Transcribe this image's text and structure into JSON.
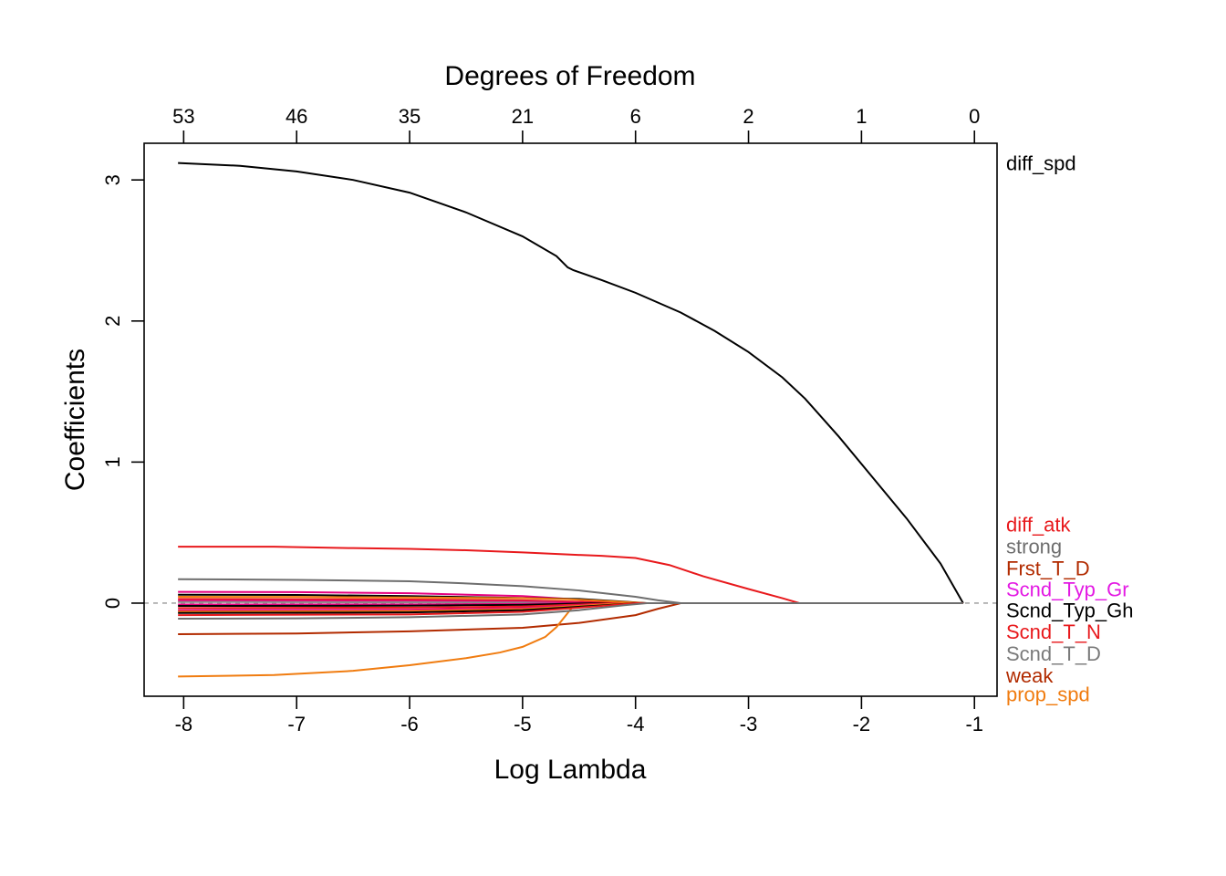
{
  "chart_data": {
    "type": "line",
    "title": "",
    "xlabel": "Log Lambda",
    "ylabel": "Coefficients",
    "top_axis_label": "Degrees of Freedom",
    "xlim": [
      -8.35,
      -0.8
    ],
    "ylim": [
      -0.66,
      3.26
    ],
    "x_ticks": [
      -8,
      -7,
      -6,
      -5,
      -4,
      -3,
      -2,
      -1
    ],
    "y_ticks": [
      0,
      1,
      2,
      3
    ],
    "top_ticks": [
      {
        "x": -8,
        "label": "53"
      },
      {
        "x": -7,
        "label": "46"
      },
      {
        "x": -6,
        "label": "35"
      },
      {
        "x": -5,
        "label": "21"
      },
      {
        "x": -4,
        "label": "6"
      },
      {
        "x": -3,
        "label": "2"
      },
      {
        "x": -2,
        "label": "1"
      },
      {
        "x": -1,
        "label": "0"
      }
    ],
    "zero_line": {
      "y": 0,
      "color": "#a8a8a8",
      "style": "dashed"
    },
    "grid": false,
    "series": [
      {
        "name": "diff_spd",
        "color": "#000000",
        "points": [
          [
            -8.05,
            3.12
          ],
          [
            -7.5,
            3.1
          ],
          [
            -7,
            3.06
          ],
          [
            -6.5,
            3.0
          ],
          [
            -6,
            2.91
          ],
          [
            -5.5,
            2.77
          ],
          [
            -5,
            2.6
          ],
          [
            -4.7,
            2.46
          ],
          [
            -4.6,
            2.38
          ],
          [
            -4.55,
            2.36
          ],
          [
            -4.3,
            2.29
          ],
          [
            -4,
            2.2
          ],
          [
            -3.6,
            2.06
          ],
          [
            -3.3,
            1.93
          ],
          [
            -3,
            1.78
          ],
          [
            -2.7,
            1.6
          ],
          [
            -2.5,
            1.45
          ],
          [
            -2.2,
            1.18
          ],
          [
            -1.9,
            0.89
          ],
          [
            -1.6,
            0.6
          ],
          [
            -1.3,
            0.28
          ],
          [
            -1.1,
            0.0
          ]
        ]
      },
      {
        "name": "diff_atk",
        "color": "#e8191c",
        "points": [
          [
            -8.05,
            0.4
          ],
          [
            -7.2,
            0.4
          ],
          [
            -6.5,
            0.39
          ],
          [
            -6,
            0.385
          ],
          [
            -5.5,
            0.375
          ],
          [
            -5,
            0.36
          ],
          [
            -4.6,
            0.345
          ],
          [
            -4.3,
            0.335
          ],
          [
            -4,
            0.32
          ],
          [
            -3.7,
            0.27
          ],
          [
            -3.4,
            0.19
          ],
          [
            -3,
            0.1
          ],
          [
            -2.7,
            0.035
          ],
          [
            -2.55,
            0.0
          ],
          [
            -1.1,
            0.0
          ]
        ]
      },
      {
        "name": "strong",
        "color": "#6e6e6e",
        "points": [
          [
            -8.05,
            0.17
          ],
          [
            -7,
            0.165
          ],
          [
            -6,
            0.155
          ],
          [
            -5.5,
            0.14
          ],
          [
            -5,
            0.12
          ],
          [
            -4.5,
            0.09
          ],
          [
            -4,
            0.045
          ],
          [
            -3.8,
            0.02
          ],
          [
            -3.6,
            0.0
          ],
          [
            -1.1,
            0.0
          ]
        ]
      },
      {
        "name": "Frst_T_D",
        "color": "#b22b00",
        "points": [
          [
            -8.05,
            -0.22
          ],
          [
            -7,
            -0.215
          ],
          [
            -6,
            -0.2
          ],
          [
            -5,
            -0.175
          ],
          [
            -4.5,
            -0.14
          ],
          [
            -4,
            -0.085
          ],
          [
            -3.8,
            -0.04
          ],
          [
            -3.6,
            0.0
          ],
          [
            -1.1,
            0.0
          ]
        ]
      },
      {
        "name": "prop_spd",
        "color": "#f07c10",
        "points": [
          [
            -8.05,
            -0.52
          ],
          [
            -7.2,
            -0.51
          ],
          [
            -6.5,
            -0.48
          ],
          [
            -6,
            -0.44
          ],
          [
            -5.5,
            -0.39
          ],
          [
            -5.2,
            -0.35
          ],
          [
            -5,
            -0.31
          ],
          [
            -4.8,
            -0.24
          ],
          [
            -4.7,
            -0.17
          ],
          [
            -4.62,
            -0.09
          ],
          [
            -4.55,
            -0.02
          ],
          [
            -4.5,
            0.0
          ],
          [
            -1.1,
            0.0
          ]
        ]
      },
      {
        "name": "",
        "color": "#e5007f",
        "points": [
          [
            -8.05,
            0.08
          ],
          [
            -7,
            0.078
          ],
          [
            -6,
            0.07
          ],
          [
            -5,
            0.05
          ],
          [
            -4.4,
            0.02
          ],
          [
            -4,
            0.0
          ],
          [
            -1.1,
            0.0
          ]
        ]
      },
      {
        "name": "",
        "color": "#000000",
        "points": [
          [
            -8.05,
            0.06
          ],
          [
            -7,
            0.058
          ],
          [
            -6,
            0.05
          ],
          [
            -5,
            0.036
          ],
          [
            -4.5,
            0.03
          ],
          [
            -4.1,
            0.01
          ],
          [
            -3.9,
            0.0
          ],
          [
            -1.1,
            0.0
          ]
        ]
      },
      {
        "name": "",
        "color": "#f07c10",
        "points": [
          [
            -8.05,
            0.045
          ],
          [
            -7,
            0.044
          ],
          [
            -6,
            0.04
          ],
          [
            -5,
            0.035
          ],
          [
            -4.6,
            0.028
          ],
          [
            -4.1,
            0.008
          ],
          [
            -3.9,
            0.0
          ],
          [
            -1.1,
            0.0
          ]
        ]
      },
      {
        "name": "",
        "color": "#e8191c",
        "points": [
          [
            -8.05,
            0.03
          ],
          [
            -6,
            0.026
          ],
          [
            -5,
            0.02
          ],
          [
            -4.4,
            0.008
          ],
          [
            -4.2,
            0.0
          ],
          [
            -1.1,
            0.0
          ]
        ]
      },
      {
        "name": "",
        "color": "#e5007f",
        "points": [
          [
            -8.05,
            0.018
          ],
          [
            -6,
            0.015
          ],
          [
            -5,
            0.01
          ],
          [
            -4.5,
            0.003
          ],
          [
            -4.3,
            0.0
          ],
          [
            -1.1,
            0.0
          ]
        ]
      },
      {
        "name": "",
        "color": "#8a8a8a",
        "points": [
          [
            -8.05,
            0.008
          ],
          [
            -6,
            0.006
          ],
          [
            -5,
            0.004
          ],
          [
            -4.6,
            0.0
          ],
          [
            -1.1,
            0.0
          ]
        ]
      },
      {
        "name": "",
        "color": "#e5007f",
        "points": [
          [
            -8.05,
            -0.01
          ],
          [
            -6,
            -0.009
          ],
          [
            -5,
            -0.006
          ],
          [
            -4.6,
            0.0
          ],
          [
            -1.1,
            0.0
          ]
        ]
      },
      {
        "name": "",
        "color": "#000000",
        "points": [
          [
            -8.05,
            -0.02
          ],
          [
            -6,
            -0.018
          ],
          [
            -5,
            -0.012
          ],
          [
            -4.5,
            -0.003
          ],
          [
            -4.3,
            0.0
          ],
          [
            -1.1,
            0.0
          ]
        ]
      },
      {
        "name": "",
        "color": "#e8191c",
        "points": [
          [
            -8.05,
            -0.035
          ],
          [
            -6,
            -0.032
          ],
          [
            -5,
            -0.024
          ],
          [
            -4.5,
            -0.01
          ],
          [
            -4.2,
            0.0
          ],
          [
            -1.1,
            0.0
          ]
        ]
      },
      {
        "name": "",
        "color": "#e5007f",
        "points": [
          [
            -8.05,
            -0.05
          ],
          [
            -6,
            -0.046
          ],
          [
            -5,
            -0.035
          ],
          [
            -4.4,
            -0.012
          ],
          [
            -4.1,
            0.0
          ],
          [
            -1.1,
            0.0
          ]
        ]
      },
      {
        "name": "",
        "color": "#f07c10",
        "points": [
          [
            -8.05,
            -0.06
          ],
          [
            -6,
            -0.056
          ],
          [
            -5,
            -0.042
          ],
          [
            -4.4,
            -0.015
          ],
          [
            -4.1,
            0.0
          ],
          [
            -1.1,
            0.0
          ]
        ]
      },
      {
        "name": "",
        "color": "#000000",
        "points": [
          [
            -8.05,
            -0.07
          ],
          [
            -6,
            -0.066
          ],
          [
            -5,
            -0.05
          ],
          [
            -4.3,
            -0.016
          ],
          [
            -4.0,
            0.0
          ],
          [
            -1.1,
            0.0
          ]
        ]
      },
      {
        "name": "",
        "color": "#e8191c",
        "points": [
          [
            -8.05,
            -0.085
          ],
          [
            -6,
            -0.08
          ],
          [
            -5,
            -0.062
          ],
          [
            -4.3,
            -0.02
          ],
          [
            -4.0,
            0.0
          ],
          [
            -1.1,
            0.0
          ]
        ]
      },
      {
        "name": "",
        "color": "#6e6e6e",
        "points": [
          [
            -8.05,
            -0.11
          ],
          [
            -7,
            -0.108
          ],
          [
            -6,
            -0.1
          ],
          [
            -5,
            -0.08
          ],
          [
            -4.5,
            -0.05
          ],
          [
            -4.1,
            -0.015
          ],
          [
            -3.9,
            0.0
          ],
          [
            -1.1,
            0.0
          ]
        ]
      }
    ],
    "right_labels": [
      {
        "text": "diff_spd",
        "color": "#000000",
        "y_value": 3.12
      },
      {
        "text": "diff_atk",
        "color": "#e8191c",
        "y_value": 0.56
      },
      {
        "text": "strong",
        "color": "#6e6e6e",
        "y_value": 0.405
      },
      {
        "text": "Frst_T_D",
        "color": "#b22b00",
        "y_value": 0.25
      },
      {
        "text": "Scnd_Typ_Gr",
        "color": "#e31ae3",
        "y_value": 0.1
      },
      {
        "text": "Scnd_Typ_Gh",
        "color": "#000000",
        "y_value": -0.05
      },
      {
        "text": "Scnd_T_N",
        "color": "#e8191c",
        "y_value": -0.2
      },
      {
        "text": "Scnd_T_D",
        "color": "#7a7a7a",
        "y_value": -0.355
      },
      {
        "text": "weak",
        "color": "#b22b00",
        "y_value": -0.51
      },
      {
        "text": "prop_spd",
        "color": "#f07c10",
        "y_value": -0.645
      }
    ]
  }
}
